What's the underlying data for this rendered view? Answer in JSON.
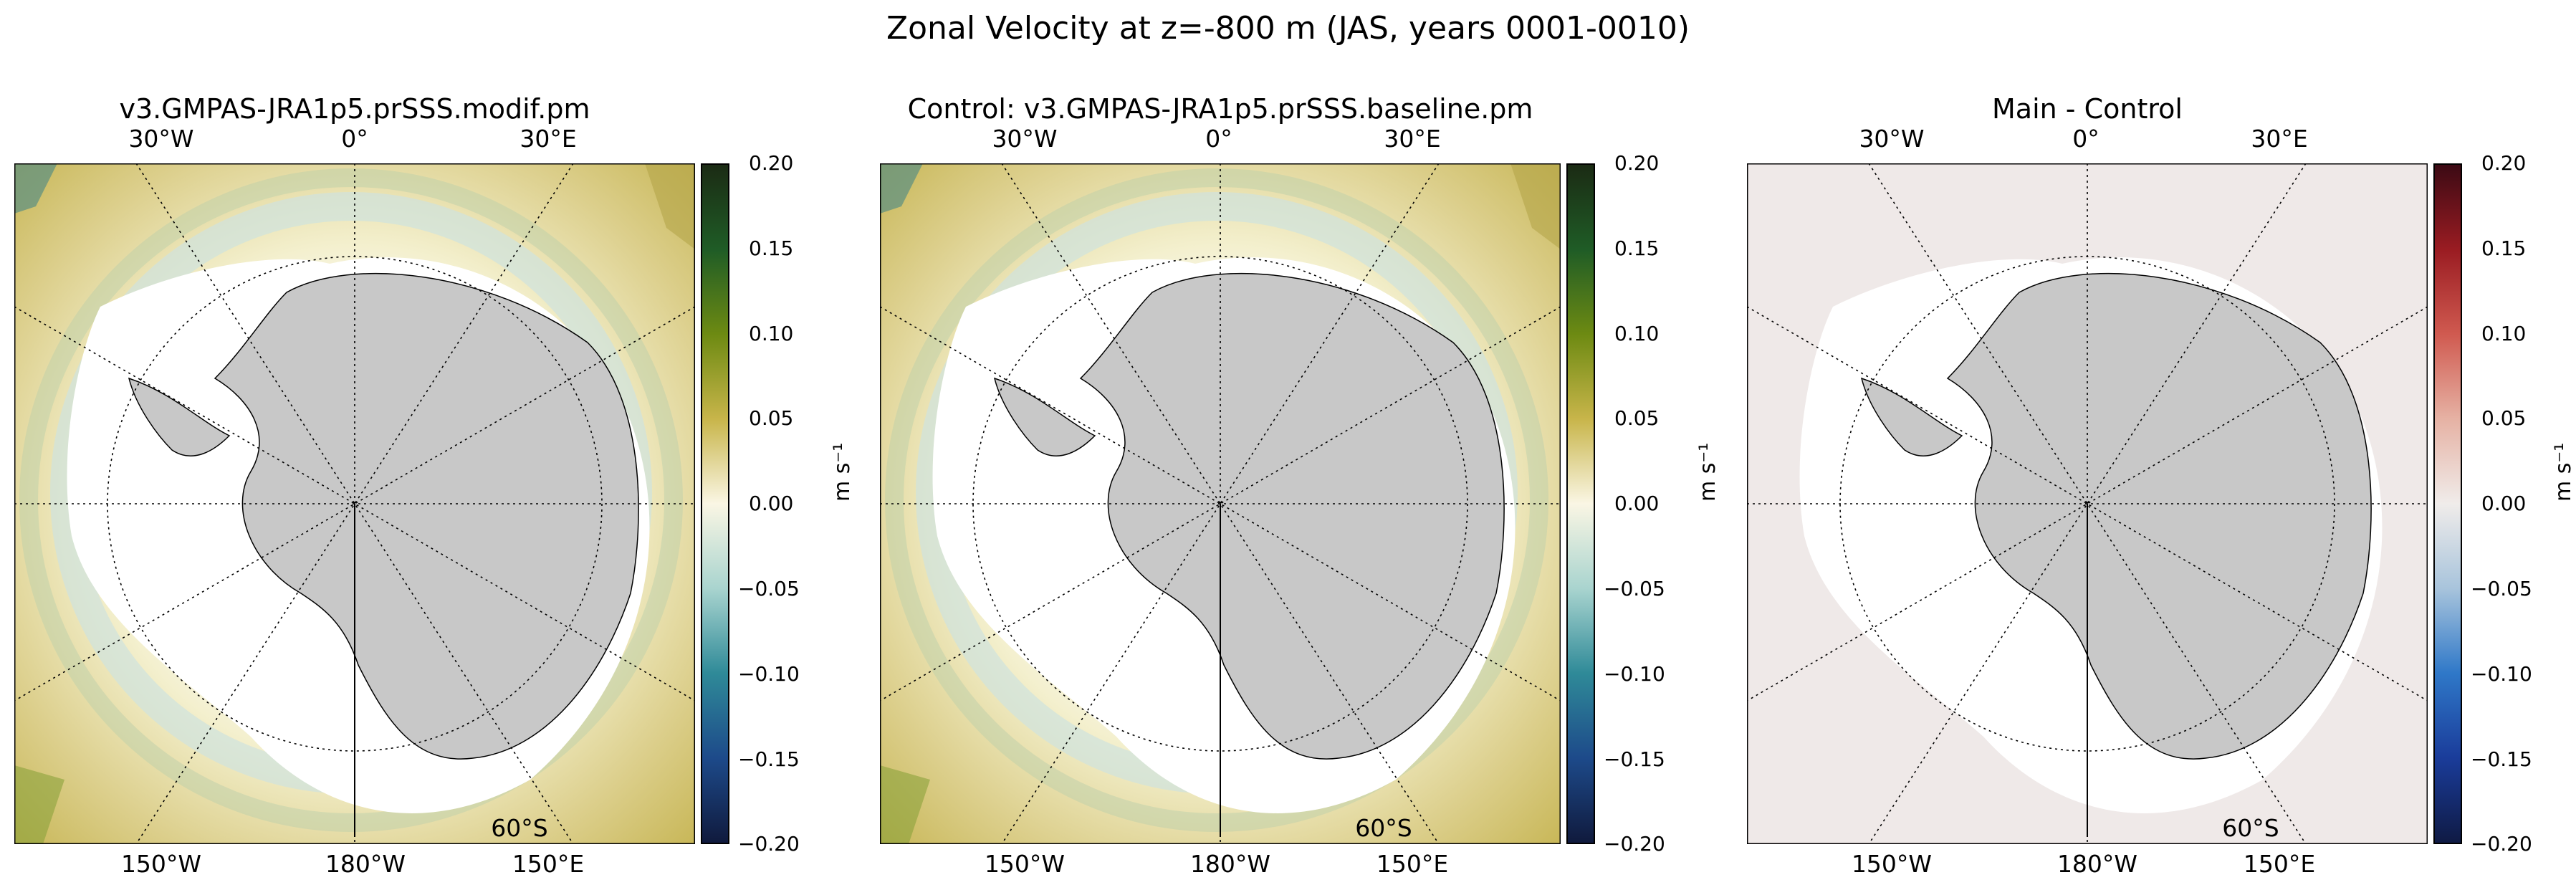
{
  "figure": {
    "title": "Zonal Velocity at z=-800 m (JAS, years 0001-0010)"
  },
  "panels": [
    {
      "title": "v3.GMPAS-JRA1p5.prSSS.modif.pm",
      "colormap": "ocean-balance (navy-teal-white-cream-olive-green)",
      "colorbar": {
        "label": "m s$^{-1}$",
        "label_text": "m s⁻¹",
        "ticks": [
          "0.20",
          "0.15",
          "0.10",
          "0.05",
          "0.00",
          "−0.05",
          "−0.10",
          "−0.15",
          "−0.20"
        ],
        "colors": [
          "#1b2b14",
          "#1f5c26",
          "#6d8a12",
          "#c8b54a",
          "#faf6e4",
          "#a9d4cf",
          "#2f8a98",
          "#1d4a8a",
          "#101a3d"
        ]
      }
    },
    {
      "title": "Control: v3.GMPAS-JRA1p5.prSSS.baseline.pm",
      "colormap": "ocean-balance (navy-teal-white-cream-olive-green)",
      "colorbar": {
        "label_text": "m s⁻¹",
        "ticks": [
          "0.20",
          "0.15",
          "0.10",
          "0.05",
          "0.00",
          "−0.05",
          "−0.10",
          "−0.15",
          "−0.20"
        ],
        "colors": [
          "#1b2b14",
          "#1f5c26",
          "#6d8a12",
          "#c8b54a",
          "#faf6e4",
          "#a9d4cf",
          "#2f8a98",
          "#1d4a8a",
          "#101a3d"
        ]
      }
    },
    {
      "title": "Main - Control",
      "colormap": "balance (navy-blue-white-red-maroon)",
      "colorbar": {
        "label_text": "m s⁻¹",
        "ticks": [
          "0.20",
          "0.15",
          "0.10",
          "0.05",
          "0.00",
          "−0.05",
          "−0.10",
          "−0.15",
          "−0.20"
        ],
        "colors": [
          "#3c0a14",
          "#9a1c22",
          "#d05a50",
          "#e6b2a4",
          "#f0ecea",
          "#a8c4dc",
          "#2f78c8",
          "#1a3c9a",
          "#0f1a44"
        ]
      }
    }
  ],
  "grid_labels": {
    "top": [
      "30°W",
      "0°",
      "30°E"
    ],
    "bottom": [
      "150°W",
      "180°W",
      "150°E"
    ],
    "lat": "60°S"
  },
  "colors": {
    "land": "#c8c8c8",
    "ice_shelf_white": "#ffffff",
    "diff_background": "#efe9e8"
  }
}
